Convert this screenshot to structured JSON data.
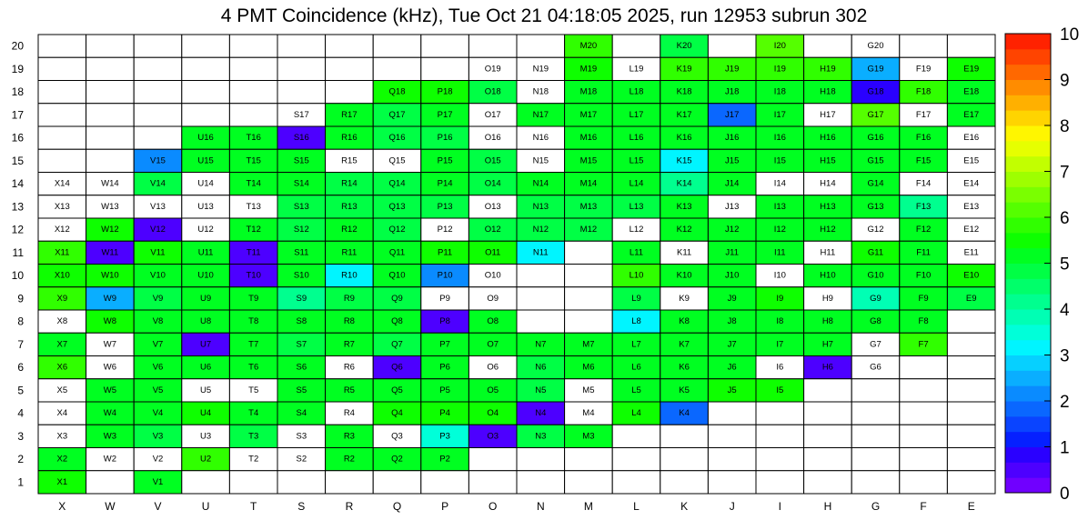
{
  "chart_data": {
    "type": "heatmap",
    "title": "4 PMT Coincidence (kHz), Tue Oct 21 04:18:05 2025, run 12953 subrun 302",
    "columns": [
      "X",
      "W",
      "V",
      "U",
      "T",
      "S",
      "R",
      "Q",
      "P",
      "O",
      "N",
      "M",
      "L",
      "K",
      "J",
      "I",
      "H",
      "G",
      "F",
      "E"
    ],
    "rows": [
      "1",
      "2",
      "3",
      "4",
      "5",
      "6",
      "7",
      "8",
      "9",
      "10",
      "11",
      "12",
      "13",
      "14",
      "15",
      "16",
      "17",
      "18",
      "19",
      "20"
    ],
    "zlim": [
      0,
      10
    ],
    "z_ticks": [
      "0",
      "1",
      "2",
      "3",
      "4",
      "5",
      "6",
      "7",
      "8",
      "9",
      "10"
    ],
    "palette": [
      "#7000ff",
      "#4d00ff",
      "#2a00ff",
      "#0620ff",
      "#0a44ff",
      "#0a67ff",
      "#0a8bff",
      "#0aaeff",
      "#06d0ff",
      "#00f5ff",
      "#00ffd9",
      "#00ffb4",
      "#00ff8f",
      "#00ff6a",
      "#00ff45",
      "#00ff21",
      "#0eff00",
      "#30ff00",
      "#55ff00",
      "#7aff00",
      "#9eff00",
      "#c2ff00",
      "#e6ff00",
      "#fff600",
      "#ffd400",
      "#ffb000",
      "#ff8c00",
      "#ff6800",
      "#ff4400",
      "#ff2200"
    ],
    "grid": "row-major from row 20 (top) to row 1 (bottom), columns X..E; '.' = empty, lowercase = white cell with value <0.5; digit = palette bin index",
    "cells_encoding": {
      "20": [
        ".",
        ".",
        ".",
        ".",
        ".",
        ".",
        ".",
        ".",
        ".",
        ".",
        ".",
        "17",
        ".",
        "14",
        ".",
        "18",
        ".",
        "w",
        ".",
        "."
      ],
      "19": [
        ".",
        ".",
        ".",
        ".",
        ".",
        ".",
        ".",
        ".",
        ".",
        "w",
        "w",
        "16",
        "w",
        "17",
        "17",
        "17",
        "17",
        "7",
        "w",
        "16"
      ],
      "18": [
        ".",
        ".",
        ".",
        ".",
        ".",
        ".",
        ".",
        "16",
        "16",
        "14",
        "w",
        "15",
        "15",
        "15",
        "15",
        "15",
        "15",
        "2",
        "17",
        "15"
      ],
      "17": [
        ".",
        ".",
        ".",
        ".",
        ".",
        "w",
        "15",
        "14",
        "15",
        "w",
        "15",
        "15",
        "15",
        "15",
        "5",
        "15",
        "w",
        "18",
        "w",
        "15"
      ],
      "16": [
        ".",
        ".",
        ".",
        "15",
        "15",
        "1",
        "15",
        "14",
        "14",
        "w",
        "w",
        "15",
        "15",
        "15",
        "15",
        "15",
        "15",
        "15",
        "15",
        "w"
      ],
      "15": [
        ".",
        ".",
        "6",
        "15",
        "15",
        "15",
        "w",
        "w",
        "15",
        "14",
        "w",
        "15",
        "15",
        "9",
        "15",
        "15",
        "15",
        "15",
        "15",
        "w"
      ],
      "14": [
        "w",
        "w",
        "14",
        "w",
        "15",
        "15",
        "14",
        "14",
        "15",
        "14",
        "15",
        "15",
        "15",
        "12",
        "15",
        "w",
        "w",
        "15",
        "w",
        "w"
      ],
      "13": [
        "w",
        "w",
        "w",
        "w",
        "w",
        "14",
        "14",
        "14",
        "14",
        "w",
        "14",
        "14",
        "14",
        "15",
        "w",
        "15",
        "15",
        "15",
        "12",
        "w"
      ],
      "12": [
        "w",
        "16",
        "1",
        "w",
        "15",
        "14",
        "15",
        "14",
        "w",
        "14",
        "14",
        "14",
        "w",
        "15",
        "15",
        "15",
        "15",
        "w",
        "15",
        "w"
      ],
      "11": [
        "17",
        "1",
        "16",
        "15",
        "1",
        "15",
        "15",
        "15",
        "16",
        "16",
        "9",
        ".",
        "15",
        "w",
        "15",
        "15",
        "w",
        "16",
        "15",
        "w"
      ],
      "10": [
        "16",
        "16",
        "15",
        "15",
        "1",
        "15",
        "9",
        "15",
        "6",
        "w",
        ".",
        ".",
        "17",
        "15",
        "15",
        "w",
        "15",
        "15",
        "15",
        "16"
      ],
      "9": [
        "17",
        "7",
        "14",
        "15",
        "15",
        "12",
        "14",
        "14",
        "w",
        "w",
        ".",
        ".",
        "14",
        "w",
        "15",
        "16",
        "w",
        "11",
        "15",
        "14"
      ],
      "8": [
        "w",
        "16",
        "15",
        "15",
        "15",
        "15",
        "15",
        "15",
        "1",
        "15",
        ".",
        ".",
        "9",
        "15",
        "15",
        "15",
        "15",
        "15",
        "15",
        "."
      ],
      "7": [
        "15",
        "w",
        "15",
        "1",
        "15",
        "14",
        "15",
        "14",
        "15",
        "15",
        "15",
        "15",
        "15",
        "15",
        "15",
        "15",
        "15",
        "w",
        "17",
        "."
      ],
      "6": [
        "17",
        "w",
        "15",
        "15",
        "15",
        "15",
        "w",
        "1",
        "15",
        "w",
        "14",
        "15",
        "15",
        "15",
        "15",
        "w",
        "1",
        "w",
        ".",
        "."
      ],
      "5": [
        "w",
        "15",
        "15",
        "w",
        "w",
        "15",
        "15",
        "15",
        "15",
        "15",
        "14",
        "w",
        "15",
        "15",
        "16",
        "16",
        ".",
        ".",
        ".",
        "."
      ],
      "4": [
        "w",
        "15",
        "15",
        "16",
        "15",
        "15",
        "w",
        "16",
        "16",
        "16",
        "1",
        "w",
        "16",
        "5",
        ".",
        ".",
        ".",
        ".",
        ".",
        "."
      ],
      "3": [
        "w",
        "15",
        "14",
        "w",
        "14",
        "w",
        "15",
        "w",
        "10",
        "1",
        "14",
        "15",
        ".",
        ".",
        ".",
        ".",
        ".",
        ".",
        ".",
        "."
      ],
      "2": [
        "15",
        "w",
        "w",
        "17",
        "w",
        "w",
        "15",
        "15",
        "15",
        ".",
        ".",
        ".",
        ".",
        ".",
        ".",
        ".",
        ".",
        ".",
        ".",
        "."
      ],
      "1": [
        "16",
        ".",
        "15",
        ".",
        ".",
        ".",
        ".",
        ".",
        ".",
        ".",
        ".",
        ".",
        ".",
        ".",
        ".",
        ".",
        ".",
        ".",
        ".",
        "."
      ]
    }
  }
}
